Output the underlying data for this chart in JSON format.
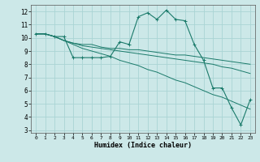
{
  "xlabel": "Humidex (Indice chaleur)",
  "ylabel": "",
  "bg_color": "#cce8e8",
  "grid_color": "#aad4d4",
  "line_color": "#1a7a6a",
  "series": [
    [
      10.3,
      10.3,
      10.1,
      10.1,
      8.5,
      8.5,
      8.5,
      8.5,
      8.6,
      9.7,
      9.5,
      11.6,
      11.9,
      11.4,
      12.1,
      11.4,
      11.3,
      9.5,
      8.3,
      6.2,
      6.2,
      4.7,
      3.4,
      5.3
    ],
    [
      10.3,
      10.3,
      10.1,
      9.8,
      9.6,
      9.5,
      9.5,
      9.3,
      9.2,
      9.2,
      9.1,
      9.1,
      9.0,
      8.9,
      8.8,
      8.7,
      8.7,
      8.6,
      8.5,
      8.4,
      8.3,
      8.2,
      8.1,
      8.0
    ],
    [
      10.3,
      10.3,
      10.1,
      9.8,
      9.6,
      9.4,
      9.3,
      9.2,
      9.1,
      9.0,
      8.9,
      8.8,
      8.7,
      8.6,
      8.5,
      8.4,
      8.3,
      8.2,
      8.1,
      8.0,
      7.8,
      7.7,
      7.5,
      7.3
    ],
    [
      10.3,
      10.3,
      10.1,
      9.8,
      9.5,
      9.2,
      9.0,
      8.8,
      8.6,
      8.3,
      8.1,
      7.9,
      7.6,
      7.4,
      7.1,
      6.8,
      6.6,
      6.3,
      6.0,
      5.7,
      5.5,
      5.2,
      4.9,
      4.6
    ]
  ],
  "x_values": [
    0,
    1,
    2,
    3,
    4,
    5,
    6,
    7,
    8,
    9,
    10,
    11,
    12,
    13,
    14,
    15,
    16,
    17,
    18,
    19,
    20,
    21,
    22,
    23
  ],
  "ylim": [
    2.8,
    12.5
  ],
  "xlim": [
    -0.5,
    23.5
  ],
  "yticks": [
    3,
    4,
    5,
    6,
    7,
    8,
    9,
    10,
    11,
    12
  ],
  "xticks": [
    0,
    1,
    2,
    3,
    4,
    5,
    6,
    7,
    8,
    9,
    10,
    11,
    12,
    13,
    14,
    15,
    16,
    17,
    18,
    19,
    20,
    21,
    22,
    23
  ]
}
